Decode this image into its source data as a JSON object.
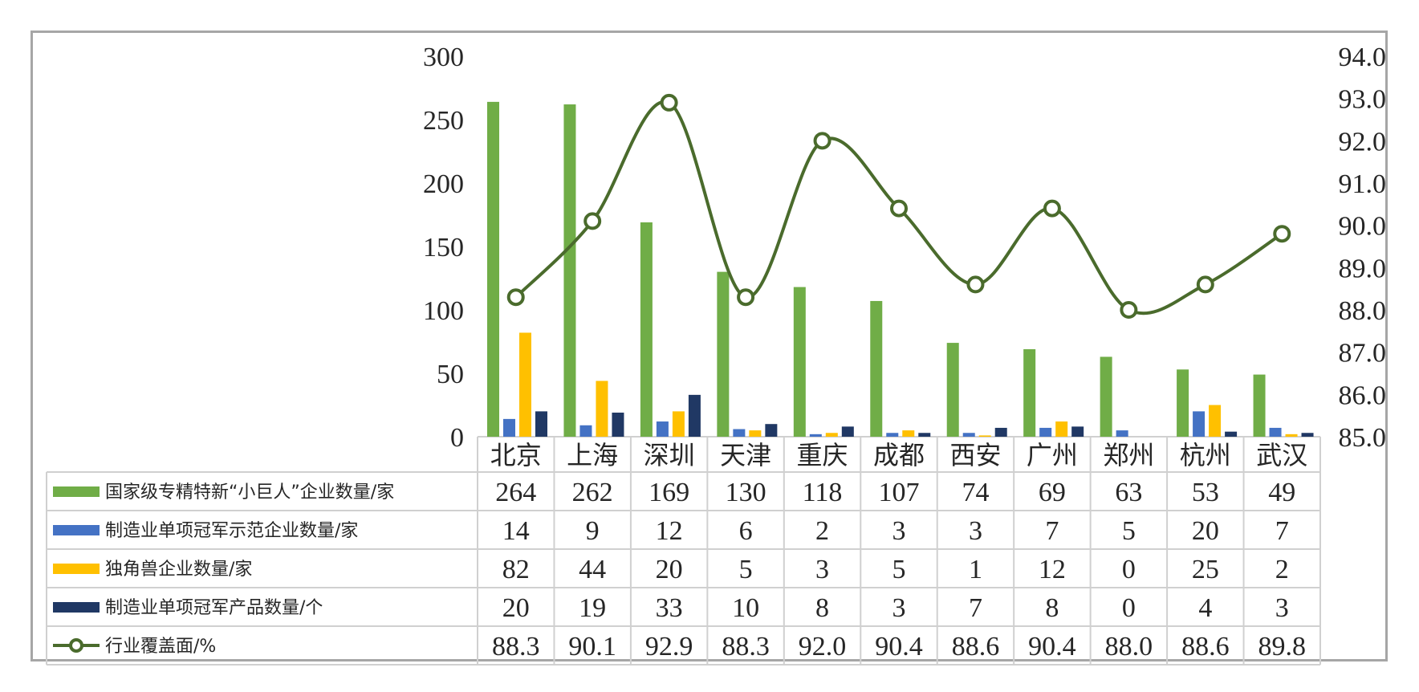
{
  "chart_data": {
    "type": "bar",
    "categories": [
      "北京",
      "上海",
      "深圳",
      "天津",
      "重庆",
      "成都",
      "西安",
      "广州",
      "郑州",
      "杭州",
      "武汉"
    ],
    "series": [
      {
        "name": "国家级专精特新“小巨人”企业数量/家",
        "kind": "bar",
        "axis": "left",
        "color": "#70ad47",
        "values": [
          264,
          262,
          169,
          130,
          118,
          107,
          74,
          69,
          63,
          53,
          49
        ],
        "labels": [
          "264",
          "262",
          "169",
          "130",
          "118",
          "107",
          "74",
          "69",
          "63",
          "53",
          "49"
        ]
      },
      {
        "name": "制造业单项冠军示范企业数量/家",
        "kind": "bar",
        "axis": "left",
        "color": "#4472c4",
        "values": [
          14,
          9,
          12,
          6,
          2,
          3,
          3,
          7,
          5,
          20,
          7
        ],
        "labels": [
          "14",
          "9",
          "12",
          "6",
          "2",
          "3",
          "3",
          "7",
          "5",
          "20",
          "7"
        ]
      },
      {
        "name": "独角兽企业数量/家",
        "kind": "bar",
        "axis": "left",
        "color": "#ffc000",
        "values": [
          82,
          44,
          20,
          5,
          3,
          5,
          1,
          12,
          0,
          25,
          2
        ],
        "labels": [
          "82",
          "44",
          "20",
          "5",
          "3",
          "5",
          "1",
          "12",
          "0",
          "25",
          "2"
        ]
      },
      {
        "name": "制造业单项冠军产品数量/个",
        "kind": "bar",
        "axis": "left",
        "color": "#203864",
        "values": [
          20,
          19,
          33,
          10,
          8,
          3,
          7,
          8,
          0,
          4,
          3
        ],
        "labels": [
          "20",
          "19",
          "33",
          "10",
          "8",
          "3",
          "7",
          "8",
          "0",
          "4",
          "3"
        ]
      },
      {
        "name": "行业覆盖面/%",
        "kind": "line",
        "axis": "right",
        "color": "#4a6b2c",
        "values": [
          88.3,
          90.1,
          92.9,
          88.3,
          92.0,
          90.4,
          88.6,
          90.4,
          88.0,
          88.6,
          89.8
        ],
        "labels": [
          "88.3",
          "90.1",
          "92.9",
          "88.3",
          "92.0",
          "90.4",
          "88.6",
          "90.4",
          "88.0",
          "88.6",
          "89.8"
        ]
      }
    ],
    "left_axis": {
      "min": 0,
      "max": 300,
      "ticks": [
        "0",
        "50",
        "100",
        "150",
        "200",
        "250",
        "300"
      ]
    },
    "right_axis": {
      "min": 85.0,
      "max": 94.0,
      "ticks": [
        "85.0",
        "86.0",
        "87.0",
        "88.0",
        "89.0",
        "90.0",
        "91.0",
        "92.0",
        "93.0",
        "94.0"
      ]
    },
    "data_table": true,
    "line_marker": "circle-open",
    "line_smooth": true
  }
}
